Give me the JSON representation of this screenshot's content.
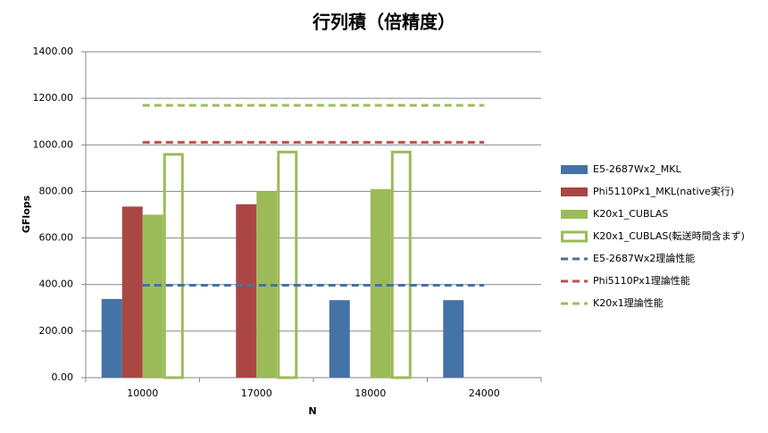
{
  "chart_data": {
    "type": "bar",
    "title": "行列積（倍精度）",
    "x_label": "N",
    "y_label": "GFlops",
    "categories": [
      "10000",
      "17000",
      "18000",
      "24000"
    ],
    "ylim": [
      0,
      1400
    ],
    "yticks": [
      {
        "value": 0,
        "label": "0.00"
      },
      {
        "value": 200,
        "label": "200.00"
      },
      {
        "value": 400,
        "label": "400.00"
      },
      {
        "value": 600,
        "label": "600.00"
      },
      {
        "value": 800,
        "label": "800.00"
      },
      {
        "value": 1000,
        "label": "1000.00"
      },
      {
        "value": 1200,
        "label": "1200.00"
      },
      {
        "value": 1400,
        "label": "1400.00"
      }
    ],
    "grid": true,
    "legend": "right",
    "series": [
      {
        "name": "E5-2687Wx2_MKL",
        "type": "bar",
        "filled": true,
        "color": "#4572a7",
        "values": [
          338,
          null,
          333,
          333
        ]
      },
      {
        "name": "Phi5110Px1_MKL(native実行)",
        "type": "bar",
        "filled": true,
        "color": "#aa4643",
        "values": [
          735,
          745,
          null,
          null
        ]
      },
      {
        "name": "K20x1_CUBLAS",
        "type": "bar",
        "filled": true,
        "color": "#9bbb59",
        "values": [
          700,
          800,
          810,
          null
        ]
      },
      {
        "name": "K20x1_CUBLAS(転送時間含まず)",
        "type": "bar",
        "filled": false,
        "color": "#9bbb59",
        "values": [
          965,
          975,
          975,
          null
        ]
      },
      {
        "name": "E5-2687Wx2理論性能",
        "type": "line",
        "dashed": true,
        "color": "#4572a7",
        "values": [
          397,
          397,
          397,
          397
        ]
      },
      {
        "name": "Phi5110Px1理論性能",
        "type": "line",
        "dashed": true,
        "color": "#c0504d",
        "values": [
          1011,
          1011,
          1011,
          1011
        ]
      },
      {
        "name": "K20x1理論性能",
        "type": "line",
        "dashed": true,
        "color": "#9bbb59",
        "values": [
          1170,
          1170,
          1170,
          1170
        ]
      }
    ]
  }
}
